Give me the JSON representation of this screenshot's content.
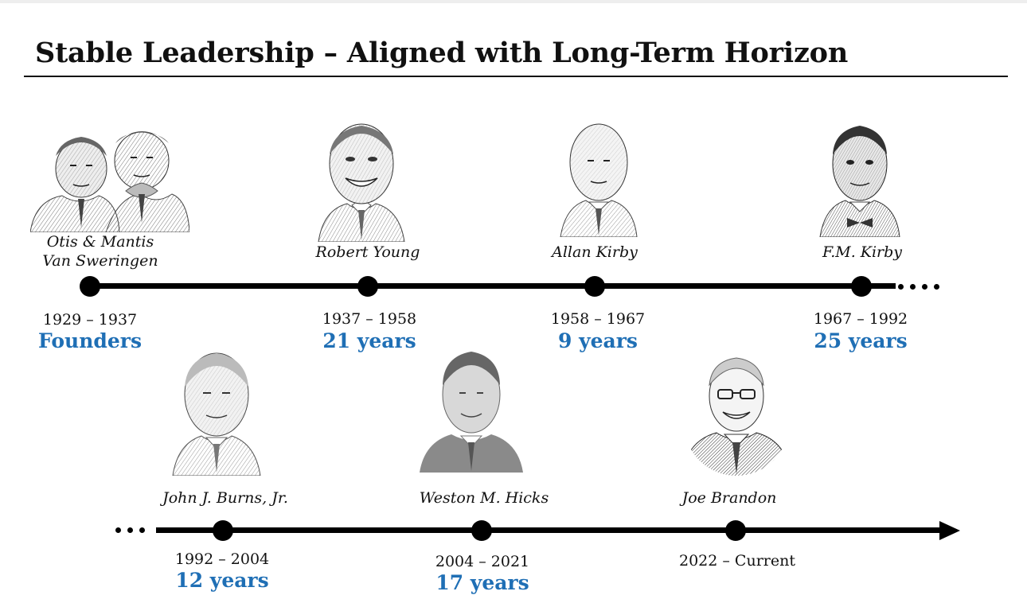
{
  "title": "Stable Leadership – Aligned with Long-Term Horizon",
  "row1": [
    {
      "name_line1": "Otis & Mantis",
      "name_line2": "Van Sweringen",
      "years": "1929 – 1937",
      "tenure": "Founders"
    },
    {
      "name_line1": "Robert Young",
      "years": "1937 – 1958",
      "tenure": "21 years"
    },
    {
      "name_line1": "Allan Kirby",
      "years": "1958 – 1967",
      "tenure": "9 years"
    },
    {
      "name_line1": "F.M. Kirby",
      "years": "1967 – 1992",
      "tenure": "25 years"
    }
  ],
  "row2": [
    {
      "name": "John J. Burns, Jr.",
      "years": "1992 – 2004",
      "tenure": "12 years"
    },
    {
      "name": "Weston M. Hicks",
      "years": "2004 – 2021",
      "tenure": "17 years"
    },
    {
      "name": "Joe Brandon",
      "years": "2022 – Current",
      "tenure": ""
    }
  ],
  "colors": {
    "tenure": "#1f6fb5",
    "line": "#000000"
  }
}
